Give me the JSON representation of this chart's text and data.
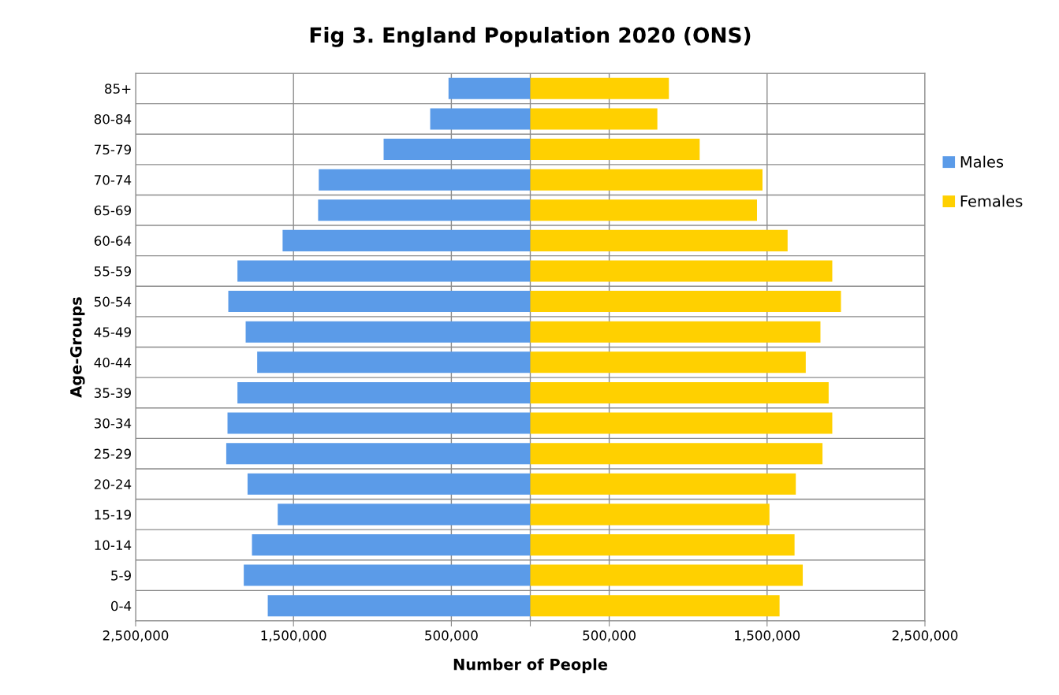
{
  "chart_data": {
    "type": "bar",
    "orientation": "horizontal",
    "title": "Fig 3. England Population 2020 (ONS)",
    "xlabel": "Number of People",
    "ylabel": "Age-Groups",
    "categories": [
      "85+",
      "80-84",
      "75-79",
      "70-74",
      "65-69",
      "60-64",
      "55-59",
      "50-54",
      "45-49",
      "40-44",
      "35-39",
      "30-34",
      "25-29",
      "20-24",
      "15-19",
      "10-14",
      "5-9",
      "0-4"
    ],
    "series": [
      {
        "name": "Males",
        "color": "#5b9be8",
        "values": [
          -518000,
          -634000,
          -929000,
          -1340000,
          -1344000,
          -1569000,
          -1855000,
          -1913000,
          -1803000,
          -1730000,
          -1855000,
          -1918000,
          -1926000,
          -1791000,
          -1600000,
          -1763000,
          -1815000,
          -1663000
        ]
      },
      {
        "name": "Females",
        "color": "#ffd000",
        "values": [
          878000,
          805000,
          1073000,
          1471000,
          1436000,
          1630000,
          1913000,
          1968000,
          1838000,
          1745000,
          1890000,
          1913000,
          1851000,
          1682000,
          1515000,
          1674000,
          1726000,
          1579000
        ]
      }
    ],
    "xlim": [
      -2500000,
      2500000
    ],
    "xticks": [
      {
        "value": -2500000,
        "label": "2,500,000"
      },
      {
        "value": -1500000,
        "label": "1,500,000"
      },
      {
        "value": -500000,
        "label": "500,000"
      },
      {
        "value": 0,
        "label": null
      },
      {
        "value": 500000,
        "label": "500,000"
      },
      {
        "value": 1500000,
        "label": "1,500,000"
      },
      {
        "value": 2500000,
        "label": "2,500,000"
      }
    ],
    "stacked": true,
    "grid": true,
    "legend": "right"
  }
}
